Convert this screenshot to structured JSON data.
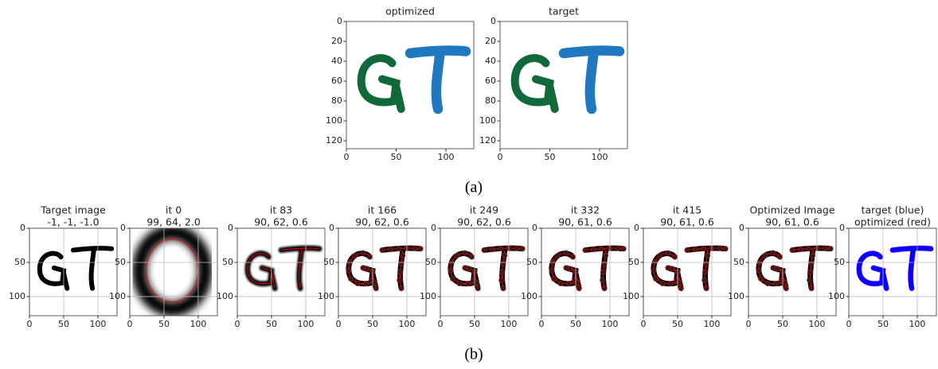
{
  "top": {
    "xlim": [
      0,
      128
    ],
    "ylim": [
      0,
      128
    ],
    "xticks": [
      0,
      50,
      100
    ],
    "yticks": [
      0,
      20,
      40,
      60,
      80,
      100,
      120
    ],
    "panels": [
      {
        "title": "optimized"
      },
      {
        "title": "target"
      }
    ],
    "caption": "(a)"
  },
  "bottom": {
    "xlim": [
      0,
      128
    ],
    "ylim": [
      0,
      128
    ],
    "xticks": [
      0,
      50,
      100
    ],
    "yticks": [
      0,
      50,
      100
    ],
    "panels": [
      {
        "title": [
          "Target image",
          "-1, -1, -1.0"
        ]
      },
      {
        "title": [
          "it 0",
          "99, 64, 2.0"
        ]
      },
      {
        "title": [
          "it 83",
          "90, 62, 0.6"
        ]
      },
      {
        "title": [
          "it 166",
          "90, 62, 0.6"
        ]
      },
      {
        "title": [
          "it 249",
          "90, 62, 0.6"
        ]
      },
      {
        "title": [
          "it 332",
          "90, 61, 0.6"
        ]
      },
      {
        "title": [
          "it 415",
          "90, 61, 0.6"
        ]
      },
      {
        "title": [
          "Optimized Image",
          "90, 61, 0.6"
        ]
      },
      {
        "title": [
          "target (blue)",
          "optimized (red)"
        ]
      }
    ],
    "caption": "(b)"
  }
}
